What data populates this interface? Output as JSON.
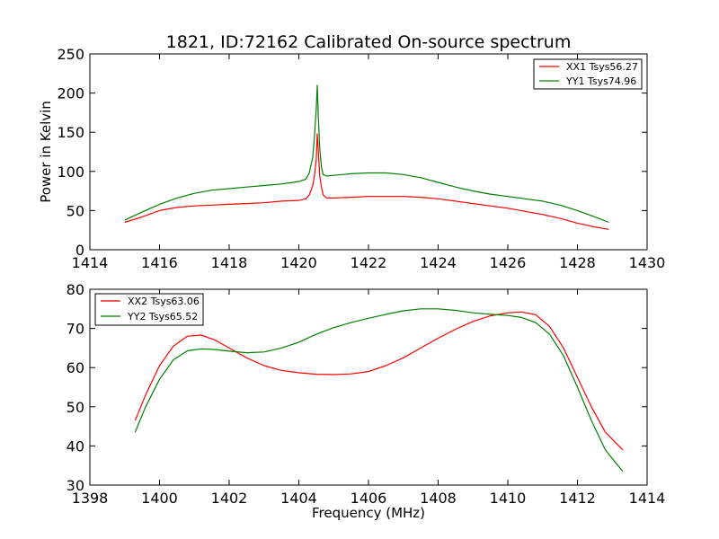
{
  "figure": {
    "title": "1821, ID:72162 Calibrated On-source spectrum",
    "xlabel": "Frequency (MHz)"
  },
  "chart_data": [
    {
      "type": "line",
      "title": "1821, ID:72162 Calibrated On-source spectrum",
      "xlabel": "",
      "ylabel": "Power in Kelvin",
      "xlim": [
        1414,
        1430
      ],
      "ylim": [
        0,
        250
      ],
      "xticks": [
        1414,
        1416,
        1418,
        1420,
        1422,
        1424,
        1426,
        1428,
        1430
      ],
      "yticks": [
        0,
        50,
        100,
        150,
        200,
        250
      ],
      "grid": false,
      "legend_position": "top-right",
      "series": [
        {
          "name": "XX1 Tsys56.27",
          "color": "#ff0000",
          "x": [
            1415.0,
            1415.5,
            1416.0,
            1416.5,
            1417.0,
            1417.5,
            1418.0,
            1418.5,
            1419.0,
            1419.5,
            1420.0,
            1420.2,
            1420.3,
            1420.4,
            1420.45,
            1420.5,
            1420.53,
            1420.56,
            1420.6,
            1420.65,
            1420.7,
            1420.8,
            1421.0,
            1421.5,
            1422.0,
            1422.5,
            1423.0,
            1423.5,
            1424.0,
            1424.5,
            1425.0,
            1425.5,
            1426.0,
            1426.5,
            1427.0,
            1427.5,
            1428.0,
            1428.5,
            1428.9
          ],
          "y": [
            35,
            42,
            50,
            54,
            56,
            57,
            58,
            59,
            60,
            62,
            63,
            65,
            70,
            82,
            95,
            115,
            148,
            125,
            95,
            80,
            70,
            66,
            66,
            67,
            68,
            68,
            68,
            67,
            65,
            62,
            59,
            56,
            53,
            49,
            45,
            40,
            34,
            29,
            26
          ]
        },
        {
          "name": "YY1 Tsys74.96",
          "color": "#008000",
          "x": [
            1415.0,
            1415.5,
            1416.0,
            1416.5,
            1417.0,
            1417.5,
            1418.0,
            1418.5,
            1419.0,
            1419.5,
            1420.0,
            1420.2,
            1420.3,
            1420.4,
            1420.45,
            1420.5,
            1420.53,
            1420.56,
            1420.6,
            1420.65,
            1420.7,
            1420.8,
            1421.0,
            1421.5,
            1422.0,
            1422.5,
            1423.0,
            1423.5,
            1424.0,
            1424.5,
            1425.0,
            1425.5,
            1426.0,
            1426.5,
            1427.0,
            1427.5,
            1428.0,
            1428.5,
            1428.9
          ],
          "y": [
            38,
            48,
            58,
            66,
            72,
            76,
            78,
            80,
            82,
            84,
            87,
            90,
            98,
            118,
            145,
            180,
            210,
            170,
            130,
            105,
            96,
            94,
            95,
            97,
            98,
            98,
            96,
            92,
            86,
            80,
            75,
            71,
            68,
            65,
            62,
            57,
            50,
            42,
            35
          ]
        }
      ]
    },
    {
      "type": "line",
      "title": "",
      "xlabel": "Frequency (MHz)",
      "ylabel": "",
      "xlim": [
        1398,
        1414
      ],
      "ylim": [
        30,
        80
      ],
      "xticks": [
        1398,
        1400,
        1402,
        1404,
        1406,
        1408,
        1410,
        1412,
        1414
      ],
      "yticks": [
        30,
        40,
        50,
        60,
        70,
        80
      ],
      "grid": false,
      "legend_position": "top-left",
      "series": [
        {
          "name": "XX2 Tsys63.06",
          "color": "#ff0000",
          "x": [
            1399.3,
            1399.6,
            1400.0,
            1400.4,
            1400.8,
            1401.2,
            1401.6,
            1402.0,
            1402.5,
            1403.0,
            1403.5,
            1404.0,
            1404.5,
            1405.0,
            1405.5,
            1406.0,
            1406.5,
            1407.0,
            1407.5,
            1408.0,
            1408.5,
            1409.0,
            1409.5,
            1410.0,
            1410.4,
            1410.8,
            1411.2,
            1411.6,
            1412.0,
            1412.4,
            1412.8,
            1413.3
          ],
          "y": [
            46.5,
            53,
            60.5,
            65.5,
            68,
            68.3,
            67,
            65,
            62.5,
            60.5,
            59.3,
            58.7,
            58.3,
            58.2,
            58.4,
            59,
            60.5,
            62.5,
            65,
            67.5,
            69.8,
            71.8,
            73.2,
            74,
            74.2,
            73.5,
            70.5,
            65,
            57.5,
            50,
            43.5,
            39
          ]
        },
        {
          "name": "YY2 Tsys65.52",
          "color": "#008000",
          "x": [
            1399.3,
            1399.6,
            1400.0,
            1400.4,
            1400.8,
            1401.2,
            1401.6,
            1402.0,
            1402.5,
            1403.0,
            1403.5,
            1404.0,
            1404.5,
            1405.0,
            1405.5,
            1406.0,
            1406.5,
            1407.0,
            1407.5,
            1408.0,
            1408.5,
            1409.0,
            1409.5,
            1410.0,
            1410.4,
            1410.8,
            1411.2,
            1411.6,
            1412.0,
            1412.4,
            1412.8,
            1413.3
          ],
          "y": [
            43.5,
            50,
            57,
            62,
            64.3,
            64.8,
            64.6,
            64.2,
            63.8,
            64,
            65,
            66.5,
            68.5,
            70.2,
            71.5,
            72.6,
            73.6,
            74.5,
            75,
            75,
            74.6,
            74,
            73.6,
            73.3,
            72.8,
            71.5,
            68.5,
            63,
            55,
            46.5,
            39,
            33.5
          ]
        }
      ]
    }
  ]
}
